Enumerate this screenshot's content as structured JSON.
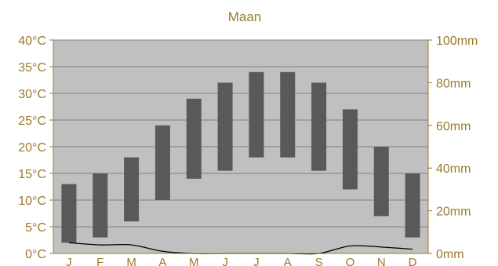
{
  "chart_data": {
    "type": "bar",
    "title": "Maan",
    "categories": [
      "J",
      "F",
      "M",
      "A",
      "M",
      "J",
      "J",
      "A",
      "S",
      "O",
      "N",
      "D"
    ],
    "series": [
      {
        "kind": "temperature_range",
        "unit": "°C",
        "low": [
          2,
          3,
          6,
          10,
          14,
          15.5,
          18,
          18,
          15.5,
          12,
          7,
          3
        ],
        "high": [
          13,
          15,
          18,
          24,
          29,
          32,
          34,
          34,
          32,
          27,
          20,
          15
        ]
      },
      {
        "kind": "precipitation",
        "unit": "mm",
        "values": [
          5,
          4,
          4,
          1,
          0,
          0,
          0,
          0,
          0,
          3.5,
          3,
          2
        ]
      }
    ],
    "y_left": {
      "ylim": [
        0,
        40
      ],
      "ticks": [
        "0°C",
        "5°C",
        "10°C",
        "15°C",
        "20°C",
        "25°C",
        "30°C",
        "35°C",
        "40°C"
      ]
    },
    "y_right": {
      "ylim": [
        0,
        100
      ],
      "ticks": [
        "0mm",
        "20mm",
        "40mm",
        "60mm",
        "80mm",
        "100mm"
      ]
    },
    "grid": true,
    "colors": {
      "plot_bg": "#c0c0c0",
      "bar": "#595959",
      "line": "#000000",
      "text": "#9b7a2e",
      "grid": "#808080",
      "frame": "#9b7a2e"
    }
  }
}
